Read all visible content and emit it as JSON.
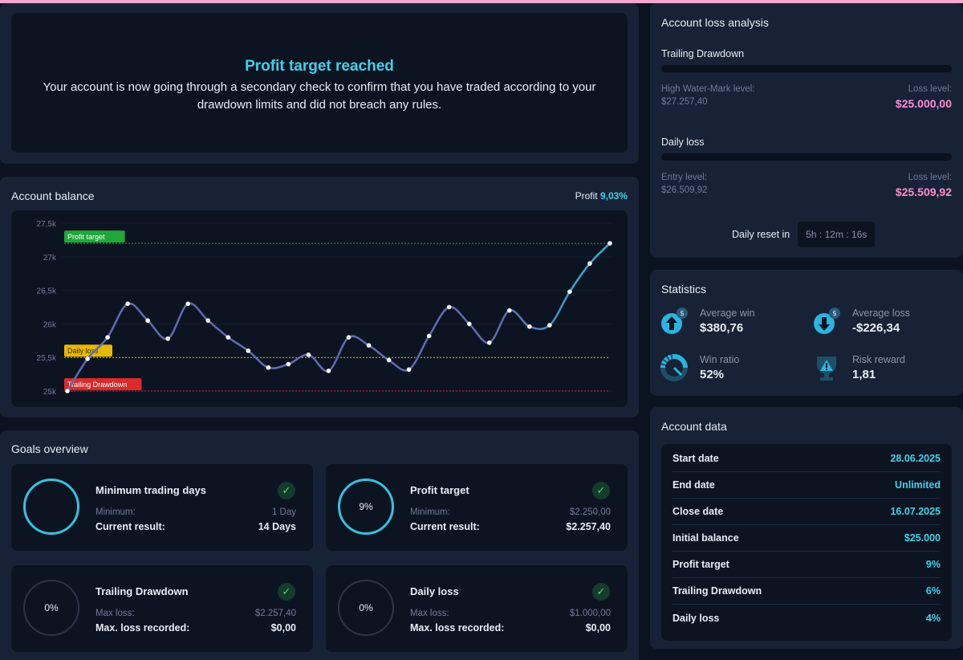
{
  "banner": {
    "title": "Profit target reached",
    "description": "Your account is now going through a secondary check to confirm that you have traded according to your drawdown limits and did not breach any rules."
  },
  "balance": {
    "title": "Account balance",
    "profit_label": "Profit",
    "profit_value": "9,03%",
    "chart_data": {
      "type": "line",
      "y_ticks": [
        "27,5k",
        "27k",
        "26,5k",
        "26k",
        "25,5k",
        "25k"
      ],
      "ylim": [
        25000,
        27500
      ],
      "x": [
        1,
        2,
        3,
        4,
        5,
        6,
        7,
        8,
        9,
        10,
        11,
        12,
        13,
        14,
        15,
        16,
        17,
        18,
        19,
        20,
        21,
        22,
        23,
        24,
        25,
        26,
        27,
        28
      ],
      "values": [
        25000,
        25480,
        25800,
        26300,
        26050,
        25780,
        26300,
        26050,
        25800,
        25600,
        25350,
        25400,
        25540,
        25300,
        25800,
        25680,
        25460,
        25320,
        25820,
        26250,
        26000,
        25720,
        26200,
        25960,
        25980,
        26480,
        26900,
        27200
      ],
      "reference_lines": [
        {
          "label": "Profit target",
          "value": 27200,
          "color": "#1fa83a"
        },
        {
          "label": "Daily loss",
          "value": 25500,
          "color": "#e6b800"
        },
        {
          "label": "Trailing Drawdown",
          "value": 25000,
          "color": "#d92b2b"
        }
      ],
      "line_color": "#5f6bb0",
      "line_color_end": "#2fb7c9"
    }
  },
  "goals": {
    "title": "Goals overview",
    "items": [
      {
        "title": "Minimum trading days",
        "ring": "",
        "label_a": "Minimum:",
        "value_a": "1 Day",
        "label_b": "Current result:",
        "value_b": "14 Days"
      },
      {
        "title": "Profit target",
        "ring": "9%",
        "label_a": "Minimum:",
        "value_a": "$2.250,00",
        "label_b": "Current result:",
        "value_b": "$2.257,40"
      },
      {
        "title": "Trailing Drawdown",
        "ring": "0%",
        "label_a": "Max loss:",
        "value_a": "$2.257,40",
        "label_b": "Max. loss recorded:",
        "value_b": "$0,00"
      },
      {
        "title": "Daily loss",
        "ring": "0%",
        "label_a": "Max loss:",
        "value_a": "$1.000,00",
        "label_b": "Max. loss recorded:",
        "value_b": "$0,00"
      }
    ]
  },
  "loss": {
    "title": "Account loss analysis",
    "trailing": {
      "title": "Trailing Drawdown",
      "left_label": "High Water-Mark level:",
      "left_value": "$27.257,40",
      "right_label": "Loss level:",
      "right_value": "$25.000,00"
    },
    "daily": {
      "title": "Daily loss",
      "left_label": "Entry level:",
      "left_value": "$26.509,92",
      "right_label": "Loss level:",
      "right_value": "$25.509,92"
    },
    "reset_label": "Daily reset in",
    "reset_timer": "5h : 12m : 16s"
  },
  "stats": {
    "title": "Statistics",
    "avg_win_label": "Average win",
    "avg_win": "$380,76",
    "avg_loss_label": "Average loss",
    "avg_loss": "-$226,34",
    "win_ratio_label": "Win ratio",
    "win_ratio": "52%",
    "risk_reward_label": "Risk reward",
    "risk_reward": "1,81"
  },
  "account_data": {
    "title": "Account data",
    "rows": [
      {
        "k": "Start date",
        "v": "28.06.2025"
      },
      {
        "k": "End date",
        "v": "Unlimited"
      },
      {
        "k": "Close date",
        "v": "16.07.2025"
      },
      {
        "k": "Initial balance",
        "v": "$25.000"
      },
      {
        "k": "Profit target",
        "v": "9%"
      },
      {
        "k": "Trailing Drawdown",
        "v": "6%"
      },
      {
        "k": "Daily loss",
        "v": "4%"
      }
    ]
  }
}
